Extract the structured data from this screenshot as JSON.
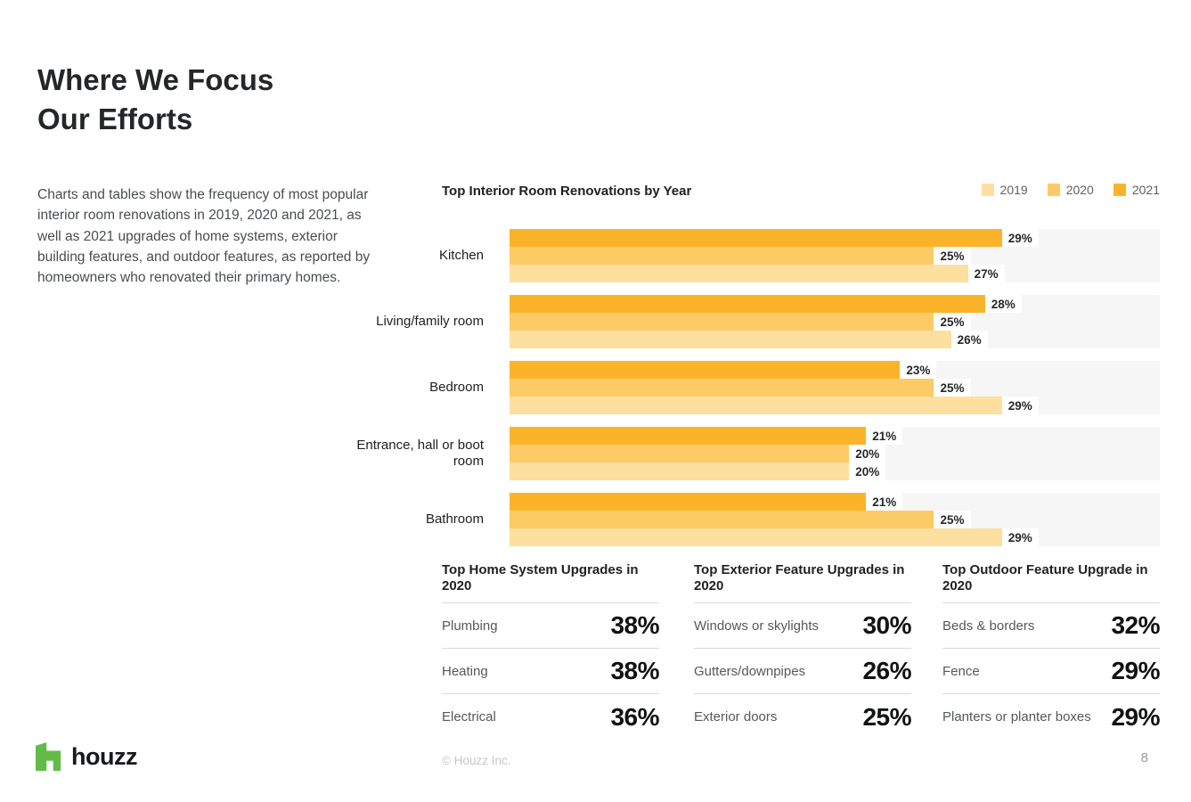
{
  "page": {
    "title_line1": "Where We Focus",
    "title_line2": "Our Efforts",
    "description": "Charts and tables show the frequency of most popular interior room renovations in 2019, 2020 and 2021, as well as 2021 upgrades of home systems, exterior building features, and outdoor features, as reported by homeowners who renovated their primary homes.",
    "brand": "houzz",
    "copyright": "© Houzz Inc.",
    "page_number": "8"
  },
  "colors": {
    "year_2019": "#FDDF9F",
    "year_2020": "#FCCB66",
    "year_2021": "#FBB429",
    "band_track": "#F6F6F6",
    "brand_green": "#62BB46"
  },
  "chart_data": {
    "type": "bar",
    "orientation": "horizontal",
    "title": "Top Interior Room Renovations by Year",
    "legend": [
      "2019",
      "2020",
      "2021"
    ],
    "legend_position": "top-right",
    "categories": [
      "Kitchen",
      "Living/family room",
      "Bedroom",
      "Entrance, hall or boot room",
      "Bathroom"
    ],
    "bar_order_top_to_bottom": [
      "2021",
      "2020",
      "2019"
    ],
    "series": [
      {
        "name": "2021",
        "color": "#FBB429",
        "values": [
          29,
          28,
          23,
          21,
          21
        ]
      },
      {
        "name": "2020",
        "color": "#FCCB66",
        "values": [
          25,
          25,
          25,
          20,
          25
        ]
      },
      {
        "name": "2019",
        "color": "#FDDF9F",
        "values": [
          27,
          26,
          29,
          20,
          29
        ]
      }
    ],
    "value_suffix": "%",
    "xlim": [
      0,
      38.3
    ],
    "grid": false,
    "group_background": "#F6F6F6"
  },
  "tables": [
    {
      "title": "Top Home System Upgrades in 2020",
      "rows": [
        {
          "label": "Plumbing",
          "value": "38%"
        },
        {
          "label": "Heating",
          "value": "38%"
        },
        {
          "label": "Electrical",
          "value": "36%"
        }
      ]
    },
    {
      "title": "Top Exterior Feature Upgrades in 2020",
      "rows": [
        {
          "label": "Windows or skylights",
          "value": "30%"
        },
        {
          "label": "Gutters/downpipes",
          "value": "26%"
        },
        {
          "label": "Exterior doors",
          "value": "25%"
        }
      ]
    },
    {
      "title": "Top Outdoor Feature Upgrade in 2020",
      "rows": [
        {
          "label": "Beds & borders",
          "value": "32%"
        },
        {
          "label": "Fence",
          "value": "29%"
        },
        {
          "label": "Planters or planter boxes",
          "value": "29%"
        }
      ]
    }
  ]
}
